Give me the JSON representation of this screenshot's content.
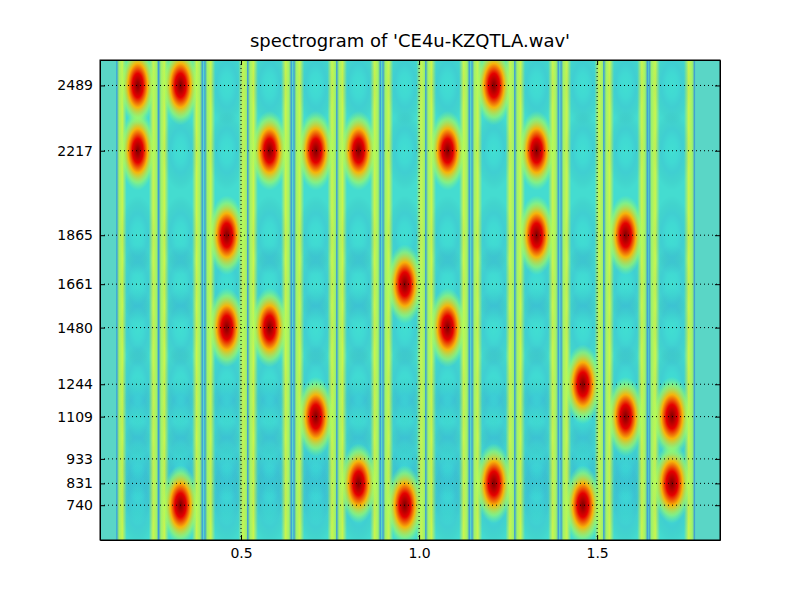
{
  "chart_data": {
    "type": "heatmap",
    "title": "spectrogram of 'CE4u-KZQTLA.wav'",
    "xlim": [
      0.104,
      1.845
    ],
    "ylim": [
      595,
      2595
    ],
    "xticks": [
      0.5,
      {
        "value": 1,
        "label": "1.0"
      },
      1.5
    ],
    "yticks": [
      740,
      831,
      933,
      1109,
      1244,
      1480,
      1661,
      1865,
      2217,
      2489
    ],
    "grid": true,
    "heatmap": {
      "x": [
        0.21,
        0.33,
        0.46,
        0.58,
        0.71,
        0.83,
        0.96,
        1.08,
        1.21,
        1.33,
        1.46,
        1.58,
        1.71
      ],
      "y": [
        740,
        831,
        933,
        1109,
        1244,
        1480,
        1661,
        1865,
        2217,
        2489
      ],
      "zlim": [
        0,
        1
      ],
      "values": [
        [
          0.4,
          0.4,
          0.4,
          0.4,
          0.4,
          0.4,
          0.4,
          0.4,
          1,
          1
        ],
        [
          1,
          0.4,
          0.4,
          0.4,
          0.4,
          0.4,
          0.4,
          0.4,
          0.4,
          1
        ],
        [
          0.4,
          0.4,
          0.4,
          0.4,
          0.4,
          1,
          0.4,
          1,
          0.4,
          0.4
        ],
        [
          0.4,
          0.4,
          0.4,
          0.4,
          0.4,
          1,
          0.4,
          0.4,
          1,
          0.4
        ],
        [
          0.4,
          0.4,
          0.4,
          1,
          0.4,
          0.4,
          0.4,
          0.4,
          1,
          0.4
        ],
        [
          0.4,
          1,
          0.4,
          0.4,
          0.4,
          0.4,
          0.4,
          0.4,
          1,
          0.4
        ],
        [
          1,
          0.4,
          0.4,
          0.4,
          0.4,
          0.4,
          1,
          0.4,
          0.4,
          0.4
        ],
        [
          0.4,
          0.4,
          0.4,
          0.4,
          0.4,
          1,
          0.4,
          0.4,
          1,
          0.4
        ],
        [
          0.4,
          1,
          0.4,
          0.4,
          0.4,
          0.4,
          0.4,
          0.4,
          0.4,
          1
        ],
        [
          0.4,
          0.4,
          0.4,
          0.4,
          0.4,
          0.4,
          0.4,
          1,
          1,
          0.4
        ],
        [
          1,
          0.4,
          0.4,
          0.4,
          1,
          0.4,
          0.4,
          0.4,
          0.4,
          0.4
        ],
        [
          0.4,
          0.4,
          0.4,
          1,
          0.4,
          0.4,
          0.4,
          1,
          0.4,
          0.4
        ],
        [
          0.4,
          1,
          0.4,
          1,
          0.4,
          0.4,
          0.4,
          0.4,
          0.4,
          0.4
        ]
      ]
    }
  }
}
